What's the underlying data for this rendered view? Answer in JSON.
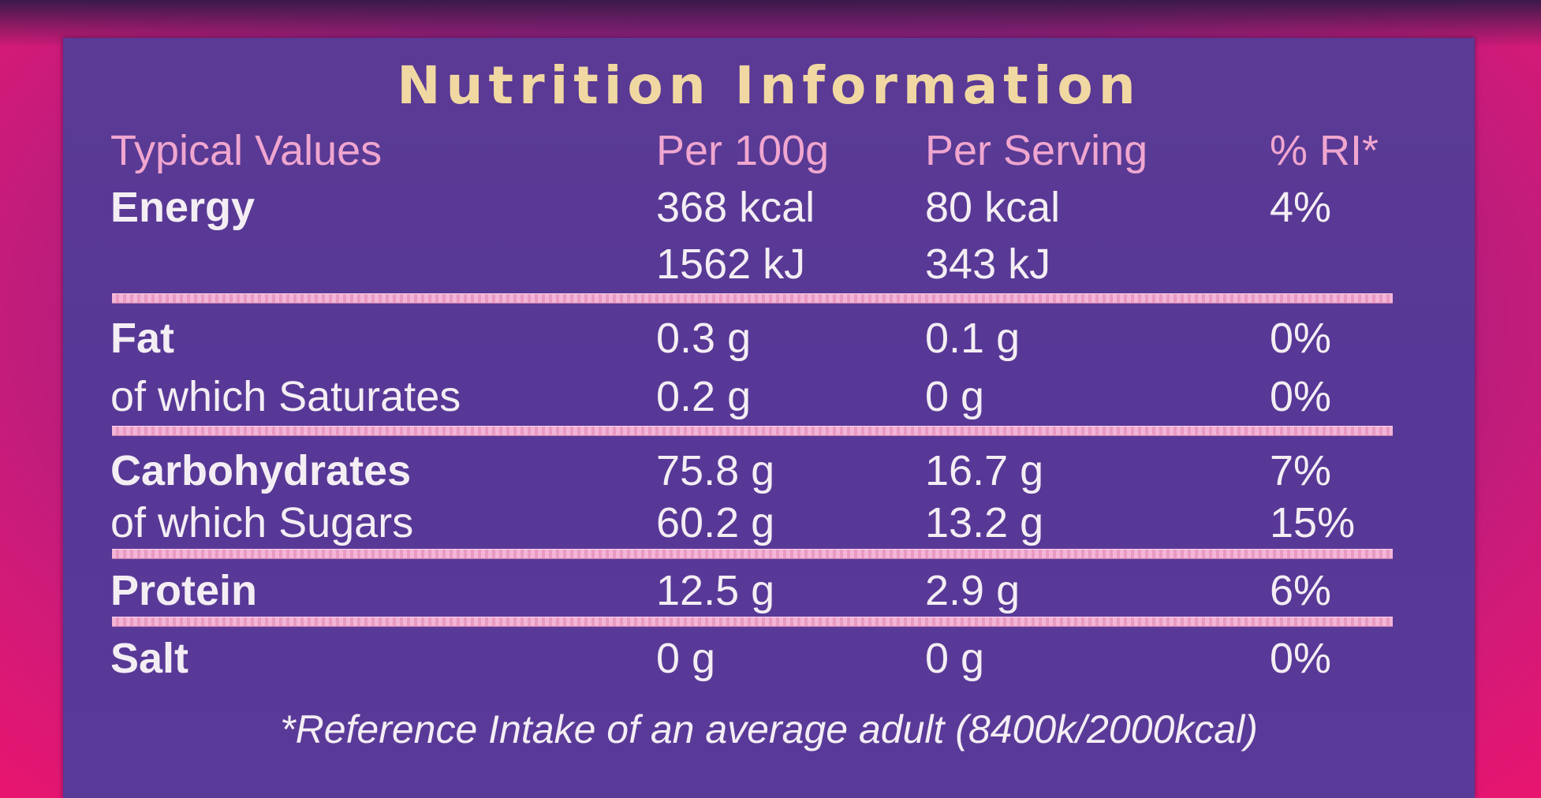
{
  "title": "Nutrition Information",
  "headers": [
    "Typical Values",
    "Per 100g",
    "Per Serving",
    "% RI*"
  ],
  "energy": {
    "label": "Energy",
    "per100_kcal": "368 kcal",
    "per100_kj": "1562 kJ",
    "serving_kcal": "80 kcal",
    "serving_kj": "343 kJ",
    "ri": "4%"
  },
  "fat": {
    "label": "Fat",
    "per100": "0.3 g",
    "serving": "0.1 g",
    "ri": "0%"
  },
  "saturates": {
    "label": "of which Saturates",
    "per100": "0.2 g",
    "serving": "0 g",
    "ri": "0%"
  },
  "carbs": {
    "label": "Carbohydrates",
    "per100": "75.8 g",
    "serving": "16.7 g",
    "ri": "7%"
  },
  "sugars": {
    "label": "of which Sugars",
    "per100": "60.2 g",
    "serving": "13.2 g",
    "ri": "15%"
  },
  "protein": {
    "label": "Protein",
    "per100": "12.5 g",
    "serving": "2.9 g",
    "ri": "6%"
  },
  "salt": {
    "label": "Salt",
    "per100": "0 g",
    "serving": "0 g",
    "ri": "0%"
  },
  "footnote": "*Reference Intake of an average adult (8400k/2000kcal)",
  "colors": {
    "panel": "#573896",
    "title": "#f1d8a2",
    "header": "#f0a6cf",
    "text": "#f4eef4",
    "rule": "#f3b5d6",
    "background": "#d21a78"
  }
}
